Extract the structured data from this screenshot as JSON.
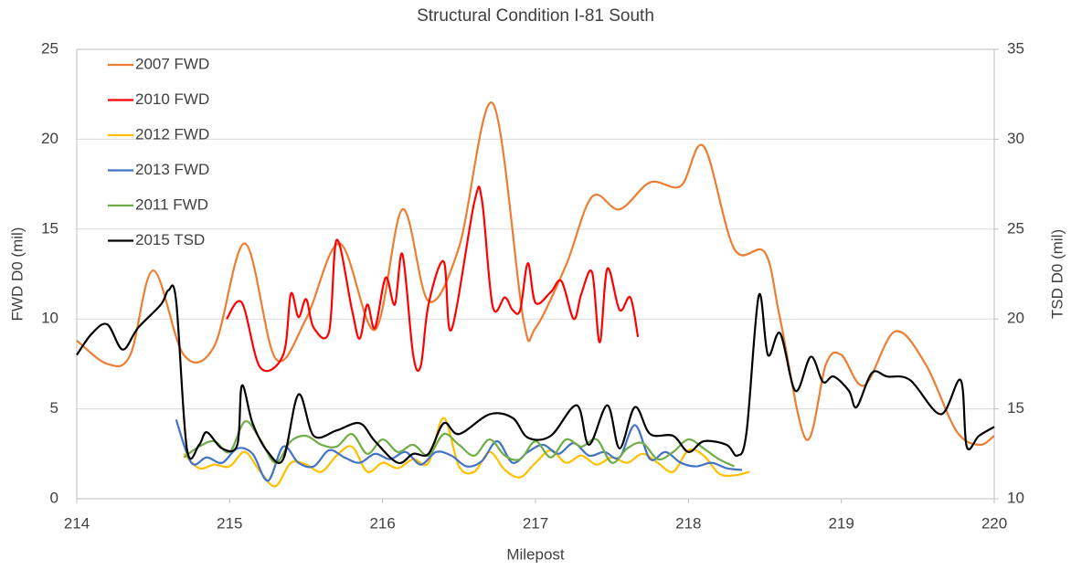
{
  "chart_data": {
    "type": "line",
    "title": "Structural Condition I-81 South",
    "x_label": "Milepost",
    "y_label": "FWD D0 (mil)",
    "y2_label": "TSD D0 (mil)",
    "xlim": [
      214,
      220
    ],
    "xticks": [
      214,
      215,
      216,
      217,
      218,
      219,
      220
    ],
    "ylim": [
      0,
      25
    ],
    "yticks": [
      0,
      5,
      10,
      15,
      20,
      25
    ],
    "y2lim": [
      10,
      35
    ],
    "y2ticks": [
      10,
      15,
      20,
      25,
      30,
      35
    ],
    "grid": true,
    "legend": "top-left",
    "smooth": true,
    "series": [
      {
        "name": "2007 FWD",
        "color": "#ed7d31",
        "x": [
          214.0,
          214.2,
          214.35,
          214.5,
          214.7,
          214.9,
          215.1,
          215.3,
          215.5,
          215.72,
          215.95,
          216.13,
          216.3,
          216.5,
          216.72,
          216.92,
          217.0,
          217.2,
          217.37,
          217.55,
          217.75,
          217.95,
          218.1,
          218.3,
          218.5,
          218.6,
          218.77,
          218.9,
          219.0,
          219.15,
          219.35,
          219.55,
          219.75,
          219.9,
          220.0
        ],
        "values": [
          8.8,
          7.5,
          8.0,
          12.7,
          8.0,
          8.5,
          14.2,
          7.8,
          10,
          14.2,
          9.4,
          16.1,
          11,
          14,
          22,
          10,
          9.5,
          13,
          16.8,
          16.1,
          17.6,
          17.4,
          19.6,
          13.9,
          13.7,
          10,
          3.3,
          7.5,
          8.0,
          6.3,
          9.3,
          7.5,
          3.8,
          3.0,
          3.5
        ]
      },
      {
        "name": "2010 FWD",
        "color": "#ff0000",
        "x": [
          214.98,
          215.08,
          215.2,
          215.35,
          215.4,
          215.45,
          215.5,
          215.55,
          215.65,
          215.7,
          215.8,
          215.85,
          215.9,
          215.95,
          216.02,
          216.08,
          216.13,
          216.2,
          216.25,
          216.3,
          216.4,
          216.45,
          216.6,
          216.65,
          216.72,
          216.8,
          216.85,
          216.9,
          216.95,
          217.0,
          217.1,
          217.17,
          217.25,
          217.3,
          217.37,
          217.42,
          217.47,
          217.55,
          217.62,
          217.67
        ],
        "values": [
          10.0,
          10.9,
          7.3,
          8.0,
          11.4,
          10.1,
          11.1,
          9.5,
          9.3,
          14.4,
          10.5,
          8.9,
          10.8,
          9.5,
          12.3,
          10.8,
          13.6,
          8.0,
          7.4,
          10.8,
          13.2,
          9.4,
          16.5,
          16.6,
          10.7,
          11.2,
          10.5,
          10.5,
          13.1,
          10.9,
          11.5,
          12.1,
          10.0,
          11.4,
          12.6,
          8.7,
          12.8,
          10.5,
          11.2,
          9.0
        ]
      },
      {
        "name": "2012 FWD",
        "color": "#ffc000",
        "x": [
          214.7,
          214.8,
          214.9,
          215.0,
          215.1,
          215.2,
          215.3,
          215.4,
          215.5,
          215.6,
          215.7,
          215.8,
          215.9,
          216.0,
          216.1,
          216.2,
          216.3,
          216.4,
          216.5,
          216.6,
          216.7,
          216.8,
          216.9,
          217.0,
          217.1,
          217.2,
          217.3,
          217.4,
          217.5,
          217.6,
          217.7,
          217.8,
          217.9,
          218.0,
          218.1,
          218.2,
          218.3,
          218.4
        ],
        "values": [
          2.5,
          1.7,
          1.9,
          1.8,
          2.6,
          1.5,
          0.7,
          2.0,
          1.9,
          1.5,
          2.4,
          2.9,
          1.5,
          2.0,
          1.7,
          2.2,
          2.0,
          4.5,
          1.8,
          1.5,
          2.6,
          1.6,
          1.2,
          2.0,
          2.7,
          2.0,
          2.4,
          1.9,
          2.3,
          2.0,
          2.5,
          2.0,
          1.5,
          2.7,
          2.4,
          1.4,
          1.3,
          1.5
        ]
      },
      {
        "name": "2013 FWD",
        "color": "#4472c4",
        "x": [
          214.65,
          214.75,
          214.85,
          214.95,
          215.05,
          215.15,
          215.25,
          215.35,
          215.45,
          215.55,
          215.65,
          215.75,
          215.85,
          215.95,
          216.05,
          216.15,
          216.25,
          216.35,
          216.45,
          216.55,
          216.65,
          216.75,
          216.85,
          216.95,
          217.05,
          217.15,
          217.25,
          217.35,
          217.45,
          217.55,
          217.65,
          217.75,
          217.85,
          217.95,
          218.05,
          218.15,
          218.25,
          218.35
        ],
        "values": [
          4.4,
          2.0,
          2.3,
          2.0,
          2.8,
          2.5,
          1.0,
          2.9,
          2.0,
          1.8,
          2.7,
          2.3,
          2.0,
          2.5,
          2.2,
          2.6,
          1.9,
          2.6,
          2.4,
          1.8,
          2.1,
          3.2,
          2.0,
          2.6,
          3.0,
          2.5,
          3.1,
          2.4,
          2.6,
          2.3,
          4.1,
          2.2,
          2.6,
          2.0,
          1.8,
          2.0,
          1.7,
          1.6
        ]
      },
      {
        "name": "2011 FWD",
        "color": "#70ad47",
        "x": [
          214.7,
          214.8,
          214.9,
          215.0,
          215.1,
          215.2,
          215.3,
          215.4,
          215.5,
          215.6,
          215.7,
          215.8,
          215.9,
          216.0,
          216.1,
          216.2,
          216.3,
          216.4,
          216.5,
          216.6,
          216.7,
          216.8,
          216.9,
          217.0,
          217.1,
          217.2,
          217.3,
          217.4,
          217.5,
          217.6,
          217.7,
          217.8,
          217.9,
          218.0,
          218.1,
          218.2,
          218.3
        ],
        "values": [
          2.3,
          2.9,
          3.2,
          2.6,
          4.3,
          3.3,
          2.0,
          3.2,
          3.5,
          3.0,
          2.9,
          3.6,
          2.5,
          3.3,
          2.6,
          3.0,
          2.4,
          3.6,
          3.0,
          2.4,
          3.3,
          2.4,
          2.2,
          3.2,
          2.3,
          3.3,
          2.9,
          3.3,
          2.0,
          2.8,
          3.1,
          2.2,
          2.6,
          3.3,
          2.8,
          2.2,
          1.8
        ]
      },
      {
        "name": "2015 TSD",
        "color": "#000000",
        "axis": "y2",
        "x": [
          214.0,
          214.1,
          214.2,
          214.3,
          214.4,
          214.55,
          214.6,
          214.65,
          214.72,
          214.8,
          214.85,
          214.95,
          215.05,
          215.08,
          215.15,
          215.25,
          215.35,
          215.45,
          215.55,
          215.7,
          215.85,
          215.95,
          216.1,
          216.2,
          216.3,
          216.4,
          216.5,
          216.7,
          216.85,
          216.95,
          217.1,
          217.27,
          217.35,
          217.47,
          217.55,
          217.65,
          217.75,
          217.9,
          218.0,
          218.1,
          218.25,
          218.32,
          218.38,
          218.46,
          218.52,
          218.6,
          218.7,
          218.8,
          218.88,
          218.95,
          219.05,
          219.1,
          219.2,
          219.3,
          219.45,
          219.65,
          219.78,
          219.82,
          219.9,
          220.0
        ],
        "values": [
          18.0,
          19.2,
          19.7,
          18.3,
          19.5,
          20.8,
          21.6,
          21.0,
          12.8,
          13.0,
          13.7,
          12.8,
          13.0,
          16.3,
          14.2,
          12.6,
          12.2,
          15.8,
          13.5,
          13.8,
          14.2,
          13.2,
          12.0,
          12.5,
          12.5,
          14.2,
          13.6,
          14.7,
          14.5,
          13.4,
          13.5,
          15.2,
          13.0,
          15.2,
          12.8,
          15.1,
          13.6,
          13.5,
          12.6,
          13.2,
          13.0,
          12.4,
          13.7,
          21.3,
          18.0,
          19.2,
          16.0,
          17.9,
          16.5,
          16.8,
          16.0,
          15.1,
          17.0,
          16.8,
          16.6,
          14.7,
          16.6,
          12.9,
          13.5,
          14.0
        ]
      }
    ]
  }
}
